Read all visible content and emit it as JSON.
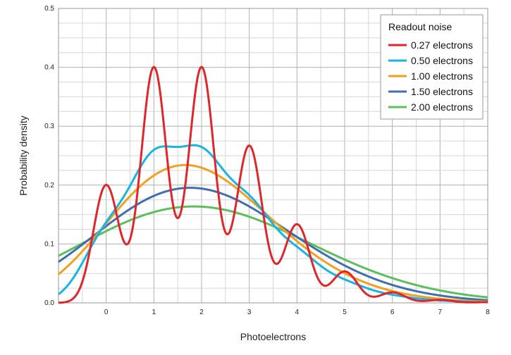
{
  "chart_data": {
    "type": "line",
    "xlabel": "Photoelectrons",
    "ylabel": "Probability density",
    "xlim": [
      -1,
      8
    ],
    "ylim": [
      0,
      0.5
    ],
    "x_ticks": [
      0,
      1,
      2,
      3,
      4,
      5,
      6,
      7,
      8
    ],
    "y_ticks": [
      0.0,
      0.1,
      0.2,
      0.3,
      0.4,
      0.5
    ],
    "y_tick_labels": [
      "0.0",
      "0.1",
      "0.2",
      "0.3",
      "0.4",
      "0.5"
    ],
    "grid": true,
    "legend": {
      "title": "Readout noise",
      "position": "top-right"
    },
    "mean_photoelectrons": 2,
    "series": [
      {
        "name": "0.27 electrons",
        "sigma": 0.27,
        "color": "#e0262b"
      },
      {
        "name": "0.50 electrons",
        "sigma": 0.5,
        "color": "#19b4e6"
      },
      {
        "name": "1.00 electrons",
        "sigma": 1.0,
        "color": "#f2a01e"
      },
      {
        "name": "1.50 electrons",
        "sigma": 1.5,
        "color": "#3f6fb0"
      },
      {
        "name": "2.00 electrons",
        "sigma": 2.0,
        "color": "#5cbf5c"
      }
    ]
  }
}
